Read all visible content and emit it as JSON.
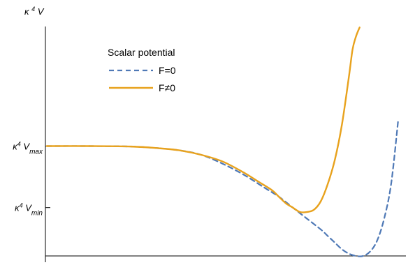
{
  "chart_data": {
    "type": "line",
    "title": "",
    "xlabel": "",
    "ylabel": {
      "base": "κ",
      "sup": "4",
      "rest": " V"
    },
    "ylim": [
      0,
      1.0
    ],
    "xlim": [
      0,
      1.0
    ],
    "grid": false,
    "legend": {
      "title": "Scalar potential",
      "position": "top-left",
      "items": [
        "F=0",
        "F≠0"
      ]
    },
    "y_ticks": [
      {
        "value": 0.5,
        "base": "κ",
        "sup": "4",
        "rest": " V",
        "sub": "max"
      },
      {
        "value": 0.22,
        "base": "κ",
        "sup": "4",
        "rest": " V",
        "sub": "min"
      }
    ],
    "series": [
      {
        "name": "F=0",
        "color": "#4f79b6",
        "dash": "dashed",
        "x": [
          0.0,
          0.12,
          0.24,
          0.32,
          0.38,
          0.44,
          0.5,
          0.56,
          0.62,
          0.66,
          0.7,
          0.74,
          0.78,
          0.8,
          0.82,
          0.84,
          0.86,
          0.88,
          0.9,
          0.92,
          0.94,
          0.96,
          0.98,
          1.0
        ],
        "y": [
          0.5,
          0.5,
          0.498,
          0.49,
          0.48,
          0.46,
          0.42,
          0.37,
          0.31,
          0.27,
          0.22,
          0.17,
          0.12,
          0.09,
          0.06,
          0.03,
          0.01,
          0.0,
          0.0,
          0.02,
          0.07,
          0.17,
          0.33,
          0.62
        ]
      },
      {
        "name": "F≠0",
        "color": "#e8a21d",
        "dash": "solid",
        "x": [
          0.0,
          0.12,
          0.24,
          0.32,
          0.38,
          0.44,
          0.5,
          0.56,
          0.6,
          0.64,
          0.66,
          0.68,
          0.7,
          0.72,
          0.74,
          0.76,
          0.78,
          0.8,
          0.82,
          0.84,
          0.86,
          0.87,
          0.88,
          0.89
        ],
        "y": [
          0.5,
          0.5,
          0.498,
          0.49,
          0.48,
          0.46,
          0.43,
          0.38,
          0.34,
          0.3,
          0.27,
          0.24,
          0.22,
          0.2,
          0.2,
          0.21,
          0.25,
          0.33,
          0.44,
          0.6,
          0.82,
          0.94,
          1.0,
          1.04
        ]
      }
    ]
  }
}
